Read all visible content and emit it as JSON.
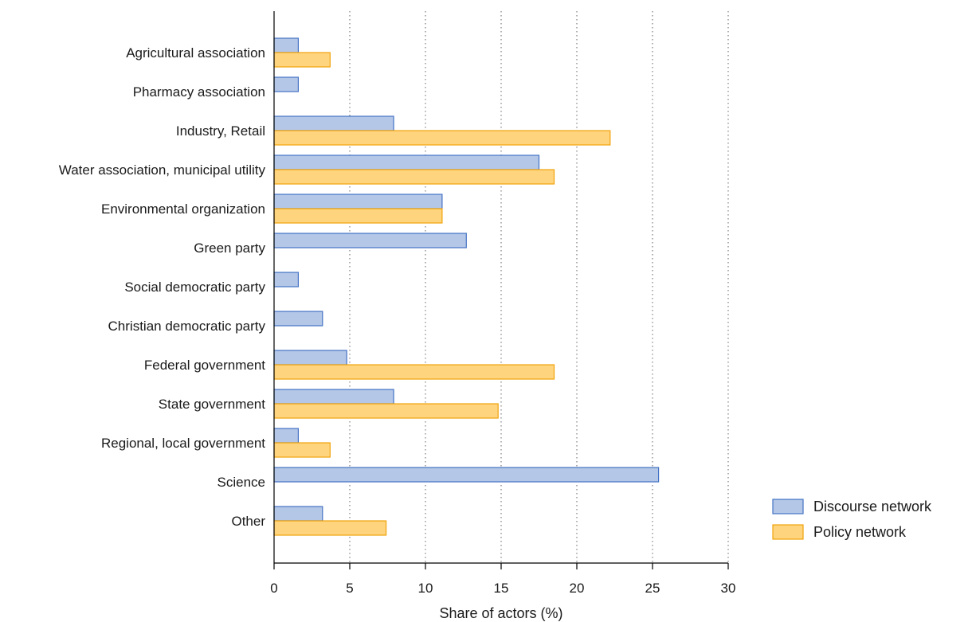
{
  "chart_data": {
    "type": "bar",
    "orientation": "horizontal",
    "categories": [
      "Agricultural association",
      "Pharmacy association",
      "Industry, Retail",
      "Water association, municipal utility",
      "Environmental organization",
      "Green party",
      "Social democratic party",
      "Christian democratic party",
      "Federal government",
      "State government",
      "Regional, local government",
      "Science",
      "Other"
    ],
    "series": [
      {
        "name": "Discourse network",
        "color": "#b4c7e7",
        "stroke": "#4472c4",
        "values": [
          1.6,
          1.6,
          7.9,
          17.5,
          11.1,
          12.7,
          1.6,
          3.2,
          4.8,
          7.9,
          1.6,
          25.4,
          3.2
        ]
      },
      {
        "name": "Policy network",
        "color": "#ffd47f",
        "stroke": "#f0a30a",
        "values": [
          3.7,
          null,
          22.2,
          18.5,
          11.1,
          null,
          null,
          null,
          18.5,
          14.8,
          3.7,
          null,
          7.4
        ]
      }
    ],
    "xlabel": "Share of actors (%)",
    "ylabel": "",
    "xlim": [
      0,
      30
    ],
    "xticks": [
      0,
      5,
      10,
      15,
      20,
      25,
      30
    ],
    "grid": "vertical-dotted",
    "legend_position": "bottom-right"
  }
}
